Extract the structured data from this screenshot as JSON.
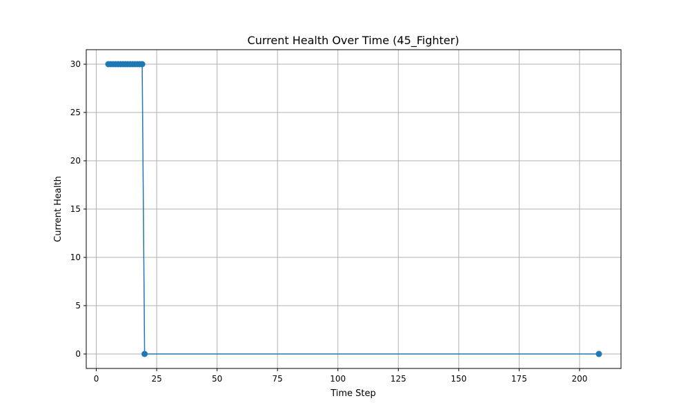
{
  "chart_data": {
    "type": "line",
    "title": "Current Health Over Time (45_Fighter)",
    "xlabel": "Time Step",
    "ylabel": "Current Health",
    "xlim": [
      -4.15,
      217.15
    ],
    "ylim": [
      -1.5,
      31.5
    ],
    "xticks": [
      0,
      25,
      50,
      75,
      100,
      125,
      150,
      175,
      200
    ],
    "yticks": [
      0,
      5,
      10,
      15,
      20,
      25,
      30
    ],
    "grid": true,
    "marker": "circle",
    "colors": {
      "line": "#1f77b4",
      "grid": "#b0b0b0",
      "frame": "#000000"
    },
    "series": [
      {
        "x": [
          5,
          6,
          7,
          8,
          9,
          10,
          11,
          12,
          13,
          14,
          15,
          16,
          17,
          18,
          19,
          20,
          208
        ],
        "y": [
          30,
          30,
          30,
          30,
          30,
          30,
          30,
          30,
          30,
          30,
          30,
          30,
          30,
          30,
          30,
          0,
          0
        ]
      }
    ]
  }
}
